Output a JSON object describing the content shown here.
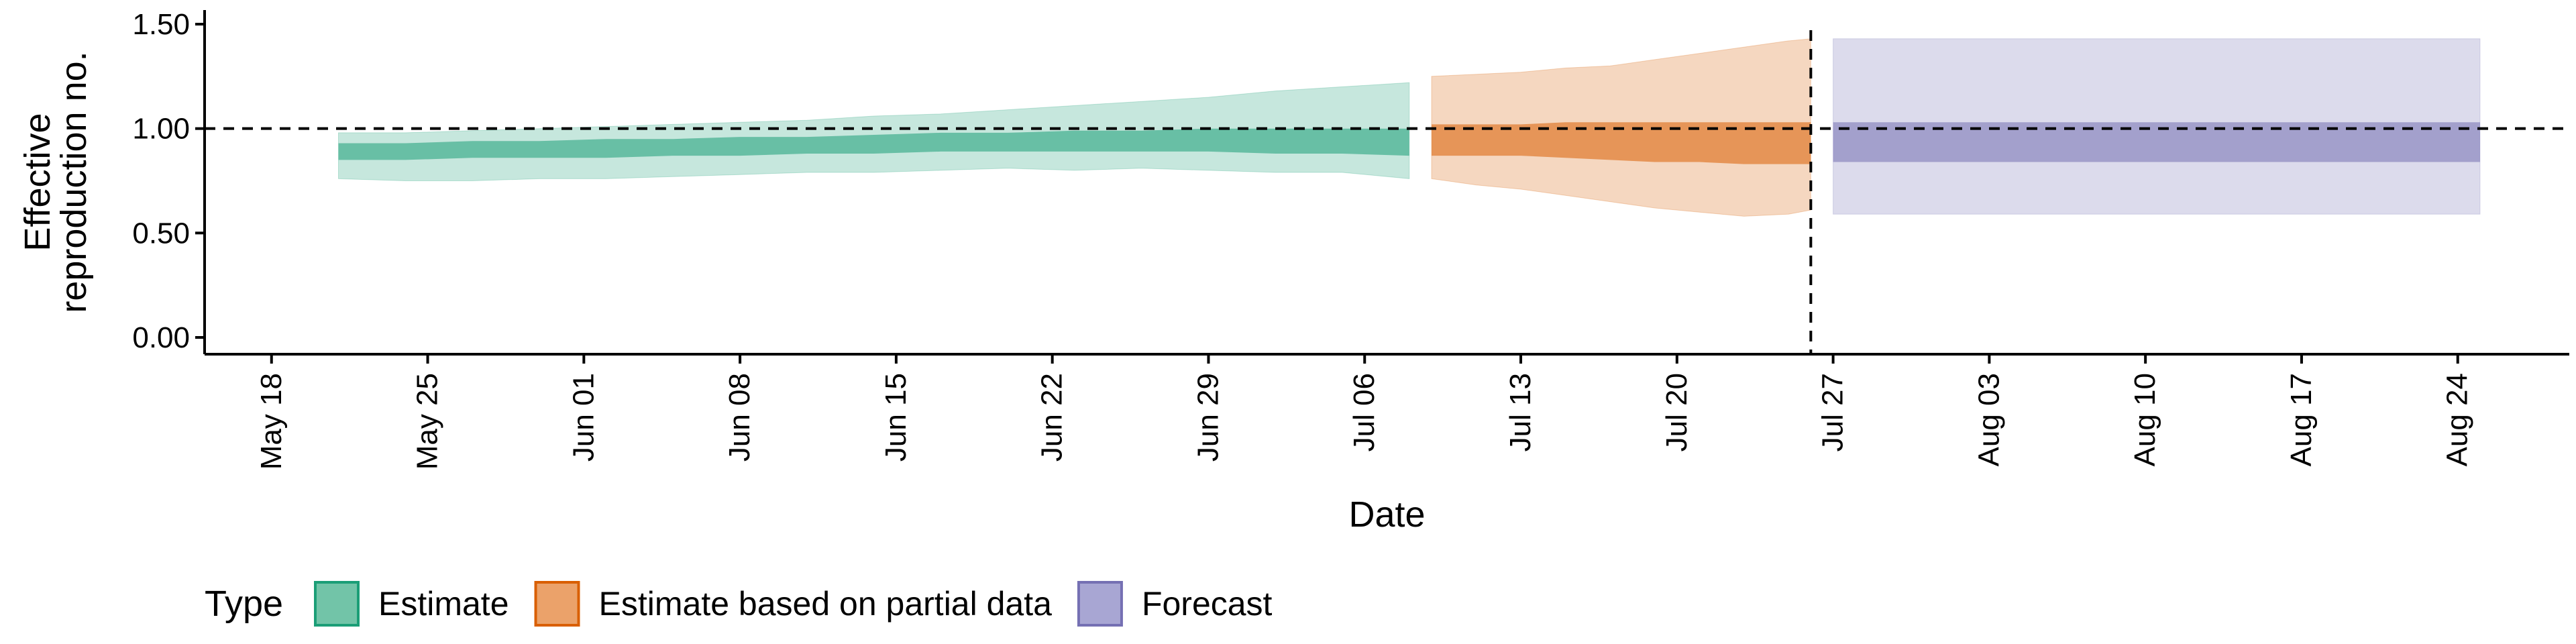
{
  "chart_data": {
    "type": "area",
    "title": "",
    "xlabel": "Date",
    "ylabel_lines": [
      "Effective",
      "reproduction no."
    ],
    "ylim": [
      0,
      1.5
    ],
    "xlim": [
      "2020-05-15",
      "2020-08-29"
    ],
    "y_ticks": [
      0.0,
      0.5,
      1.0,
      1.5
    ],
    "y_tick_labels": [
      "0.00",
      "0.50",
      "1.00",
      "1.50"
    ],
    "x_ticks": [
      "2020-05-18",
      "2020-05-25",
      "2020-06-01",
      "2020-06-08",
      "2020-06-15",
      "2020-06-22",
      "2020-06-29",
      "2020-07-06",
      "2020-07-13",
      "2020-07-20",
      "2020-07-27",
      "2020-08-03",
      "2020-08-10",
      "2020-08-17",
      "2020-08-24"
    ],
    "x_tick_labels": [
      "May 18",
      "May 25",
      "Jun 01",
      "Jun 08",
      "Jun 15",
      "Jun 22",
      "Jun 29",
      "Jul 06",
      "Jul 13",
      "Jul 20",
      "Jul 27",
      "Aug 03",
      "Aug 10",
      "Aug 17",
      "Aug 24"
    ],
    "reference_line_y": 1.0,
    "vertical_line_x": "2020-07-26",
    "grid": false,
    "legend": {
      "title": "Type",
      "placement": "bottom-left",
      "entries": [
        {
          "label": "Estimate",
          "fill": "#72c4a8",
          "stroke": "#1b9e77"
        },
        {
          "label": "Estimate based on partial data",
          "fill": "#eba26a",
          "stroke": "#d95f02"
        },
        {
          "label": "Forecast",
          "fill": "#a8a6d3",
          "stroke": "#7570b3"
        }
      ]
    },
    "series": [
      {
        "name": "Estimate",
        "color": "#1b9e77",
        "x": [
          "2020-05-21",
          "2020-05-24",
          "2020-05-27",
          "2020-05-30",
          "2020-06-02",
          "2020-06-05",
          "2020-06-08",
          "2020-06-11",
          "2020-06-14",
          "2020-06-17",
          "2020-06-20",
          "2020-06-23",
          "2020-06-26",
          "2020-06-29",
          "2020-07-02",
          "2020-07-05",
          "2020-07-08"
        ],
        "outer_lower": [
          0.76,
          0.75,
          0.75,
          0.76,
          0.76,
          0.77,
          0.78,
          0.79,
          0.79,
          0.8,
          0.81,
          0.8,
          0.81,
          0.8,
          0.79,
          0.79,
          0.76
        ],
        "outer_upper": [
          0.98,
          0.98,
          0.99,
          1.0,
          1.01,
          1.02,
          1.03,
          1.04,
          1.06,
          1.07,
          1.09,
          1.11,
          1.13,
          1.15,
          1.18,
          1.2,
          1.22
        ],
        "inner_lower": [
          0.85,
          0.85,
          0.86,
          0.86,
          0.86,
          0.87,
          0.87,
          0.88,
          0.88,
          0.89,
          0.89,
          0.89,
          0.89,
          0.89,
          0.88,
          0.88,
          0.87
        ],
        "inner_upper": [
          0.93,
          0.93,
          0.94,
          0.94,
          0.95,
          0.95,
          0.96,
          0.96,
          0.97,
          0.98,
          0.98,
          0.99,
          0.99,
          1.0,
          1.0,
          1.0,
          1.0
        ]
      },
      {
        "name": "Estimate based on partial data",
        "color": "#d95f02",
        "x": [
          "2020-07-09",
          "2020-07-11",
          "2020-07-13",
          "2020-07-15",
          "2020-07-17",
          "2020-07-19",
          "2020-07-21",
          "2020-07-23",
          "2020-07-25",
          "2020-07-26"
        ],
        "outer_lower": [
          0.76,
          0.73,
          0.71,
          0.68,
          0.65,
          0.62,
          0.6,
          0.58,
          0.59,
          0.61
        ],
        "outer_upper": [
          1.25,
          1.26,
          1.27,
          1.29,
          1.3,
          1.33,
          1.36,
          1.39,
          1.42,
          1.43
        ],
        "inner_lower": [
          0.87,
          0.87,
          0.87,
          0.86,
          0.85,
          0.84,
          0.84,
          0.83,
          0.83,
          0.83
        ],
        "inner_upper": [
          1.02,
          1.02,
          1.02,
          1.03,
          1.03,
          1.03,
          1.03,
          1.03,
          1.03,
          1.03
        ]
      },
      {
        "name": "Forecast",
        "color": "#7570b3",
        "x": [
          "2020-07-27",
          "2020-08-25"
        ],
        "outer_lower": [
          0.59,
          0.59
        ],
        "outer_upper": [
          1.43,
          1.43
        ],
        "inner_lower": [
          0.84,
          0.84
        ],
        "inner_upper": [
          1.03,
          1.03
        ]
      }
    ]
  }
}
